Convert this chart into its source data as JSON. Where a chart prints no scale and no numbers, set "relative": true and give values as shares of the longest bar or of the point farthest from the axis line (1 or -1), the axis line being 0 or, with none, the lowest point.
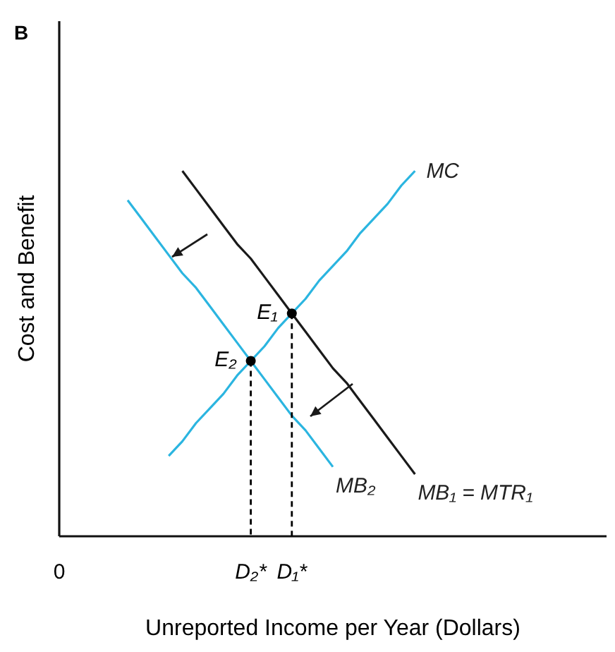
{
  "chart_data": {
    "type": "line",
    "title": "B",
    "xlabel": "Unreported Income per Year (Dollars)",
    "ylabel": "Cost and Benefit",
    "relative": true,
    "tick_labels": "x",
    "categories": [
      "0",
      null,
      null,
      null,
      null,
      null,
      null,
      null,
      null,
      null,
      null,
      null,
      null,
      null,
      "D₂*",
      null,
      null,
      "D₁*",
      null,
      null,
      null,
      null,
      null,
      null,
      null,
      null,
      null,
      null,
      null,
      null,
      null,
      null,
      null,
      null,
      null,
      null,
      null,
      null,
      null,
      null,
      null
    ],
    "series": [
      {
        "name": "MC",
        "color": "#2bb5e0",
        "values": [
          null,
          null,
          null,
          null,
          null,
          null,
          null,
          null,
          0.22,
          0.26,
          0.31,
          0.35,
          0.39,
          0.44,
          0.48,
          0.52,
          0.57,
          0.61,
          0.65,
          0.7,
          0.74,
          0.78,
          0.83,
          0.87,
          0.91,
          0.96,
          1.0,
          null,
          null,
          null,
          null,
          null,
          null,
          null,
          null,
          null,
          null,
          null,
          null,
          null,
          null
        ]
      },
      {
        "name": "MB₂",
        "color": "#2bb5e0",
        "values": [
          null,
          null,
          null,
          null,
          null,
          0.92,
          0.87,
          0.82,
          0.77,
          0.72,
          0.68,
          0.63,
          0.58,
          0.53,
          0.48,
          0.43,
          0.38,
          0.33,
          0.29,
          0.24,
          0.19,
          null,
          null,
          null,
          null,
          null,
          null,
          null,
          null,
          null,
          null,
          null,
          null,
          null,
          null,
          null,
          null,
          null,
          null,
          null,
          null
        ]
      },
      {
        "name": "MB₁ = MTR₁",
        "color": "#1a1a1a",
        "values": [
          null,
          null,
          null,
          null,
          null,
          null,
          null,
          null,
          null,
          1.0,
          0.95,
          0.9,
          0.85,
          0.8,
          0.76,
          0.71,
          0.66,
          0.61,
          0.56,
          0.51,
          0.46,
          0.42,
          0.37,
          0.32,
          0.27,
          0.22,
          0.17,
          null,
          null,
          null,
          null,
          null,
          null,
          null,
          null,
          null,
          null,
          null,
          null,
          null,
          null
        ]
      },
      {
        "type": "scatter",
        "marker": "circle",
        "line_style": "dashed",
        "color": "#000000",
        "values": [
          null,
          null,
          null,
          null,
          null,
          null,
          null,
          null,
          null,
          null,
          null,
          null,
          null,
          null,
          0.48,
          null,
          null,
          0.61,
          null,
          null,
          null,
          null,
          null,
          null,
          null,
          null,
          null,
          null,
          null,
          null,
          null,
          null,
          null,
          null,
          null,
          null,
          null,
          null,
          null,
          null,
          null
        ]
      }
    ],
    "annotations": [
      "E₂",
      "E₁"
    ]
  }
}
